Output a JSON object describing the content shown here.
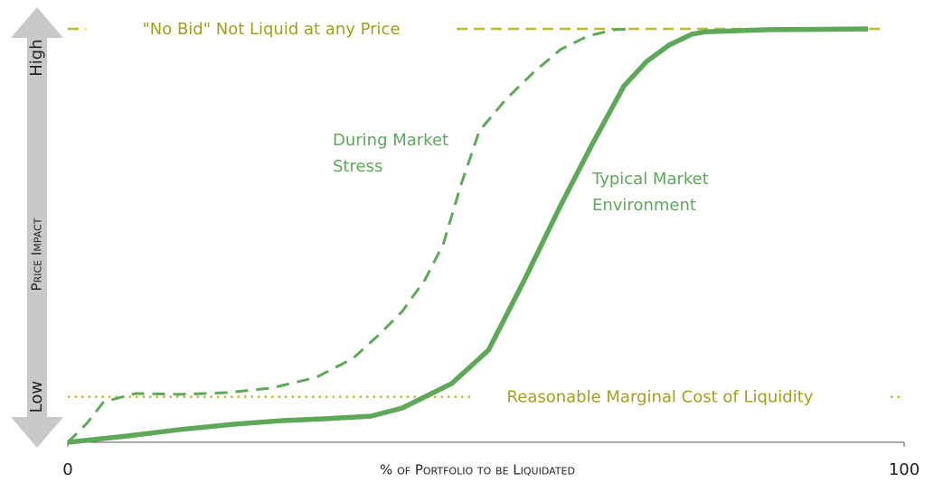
{
  "chart_data": {
    "type": "line",
    "x_label": "% of Portfolio to be Liquidated",
    "y_label": "Price Impact",
    "xlim": [
      0,
      100
    ],
    "xticks": [
      0,
      100
    ],
    "ylim": [
      0,
      100
    ],
    "yticks": [
      {
        "value": 11,
        "label": "Low"
      },
      {
        "value": 93,
        "label": "High"
      }
    ],
    "series": [
      {
        "name": "Typical Market Environment",
        "color": "#5fa85a",
        "style": "solid",
        "x": [
          0,
          7,
          13.5,
          20,
          25.4,
          30.8,
          36.2,
          40,
          45.9,
          50.3,
          54.6,
          58.9,
          62.7,
          66.5,
          69.2,
          71.9,
          74.6,
          76.2,
          83.8,
          95.7
        ],
        "values": [
          0,
          1.5,
          3.1,
          4.4,
          5.2,
          5.7,
          6.3,
          8.3,
          14.2,
          22.3,
          39.3,
          57.2,
          72.1,
          86.2,
          92.1,
          96.1,
          98.7,
          99.3,
          99.8,
          100
        ]
      },
      {
        "name": "During Market Stress",
        "color": "#5fa85a",
        "style": "dashed",
        "x": [
          0,
          2.2,
          4.3,
          8.1,
          13.5,
          18.9,
          24.3,
          29.7,
          34.1,
          37.3,
          40,
          42.7,
          44.9,
          47,
          49.2,
          52.4,
          55.7,
          58.9,
          62.2,
          65.4,
          67.6
        ],
        "values": [
          0,
          4.4,
          9.8,
          11.8,
          11.6,
          12,
          13.1,
          15.7,
          20.3,
          26.2,
          31.7,
          39.3,
          48,
          62.2,
          75.3,
          83,
          89.5,
          95,
          98.3,
          99.8,
          100
        ]
      }
    ],
    "annotations": [
      {
        "lines": [
          "During Market",
          "Stress"
        ]
      },
      {
        "lines": [
          "Typical Market",
          "Environment"
        ]
      }
    ],
    "reference_lines": [
      {
        "label": "\"No Bid\" Not Liquid at any Price",
        "value": 100,
        "style": "dashed",
        "color": "#c2bc2a"
      },
      {
        "label": "Reasonable Marginal Cost of Liquidity",
        "value": 11,
        "style": "dotted",
        "color": "#c2bc2a"
      }
    ]
  }
}
